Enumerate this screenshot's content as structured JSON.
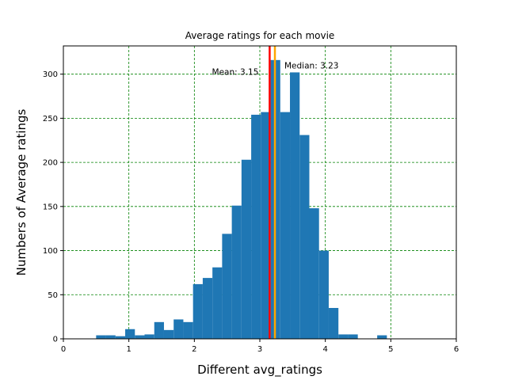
{
  "chart_data": {
    "type": "bar",
    "title": "Average ratings for each movie",
    "xlabel": "Different avg_ratings",
    "ylabel": "Numbers of Average ratings",
    "xlim": [
      0,
      6
    ],
    "ylim": [
      0,
      332
    ],
    "xticks": [
      0,
      1,
      2,
      3,
      4,
      5,
      6
    ],
    "yticks": [
      0,
      50,
      100,
      150,
      200,
      250,
      300
    ],
    "grid": true,
    "bin_width": 0.148,
    "bins": [
      {
        "x0": 0.5,
        "count": 4
      },
      {
        "x0": 0.648,
        "count": 4
      },
      {
        "x0": 0.796,
        "count": 3
      },
      {
        "x0": 0.944,
        "count": 11
      },
      {
        "x0": 1.092,
        "count": 4
      },
      {
        "x0": 1.24,
        "count": 5
      },
      {
        "x0": 1.388,
        "count": 19
      },
      {
        "x0": 1.536,
        "count": 10
      },
      {
        "x0": 1.684,
        "count": 22
      },
      {
        "x0": 1.832,
        "count": 19
      },
      {
        "x0": 1.98,
        "count": 62
      },
      {
        "x0": 2.128,
        "count": 69
      },
      {
        "x0": 2.276,
        "count": 81
      },
      {
        "x0": 2.424,
        "count": 119
      },
      {
        "x0": 2.572,
        "count": 151
      },
      {
        "x0": 2.72,
        "count": 203
      },
      {
        "x0": 2.868,
        "count": 254
      },
      {
        "x0": 3.016,
        "count": 257
      },
      {
        "x0": 3.164,
        "count": 316
      },
      {
        "x0": 3.312,
        "count": 257
      },
      {
        "x0": 3.46,
        "count": 302
      },
      {
        "x0": 3.608,
        "count": 231
      },
      {
        "x0": 3.756,
        "count": 148
      },
      {
        "x0": 3.904,
        "count": 100
      },
      {
        "x0": 4.052,
        "count": 35
      },
      {
        "x0": 4.2,
        "count": 5
      },
      {
        "x0": 4.348,
        "count": 5
      },
      {
        "x0": 4.496,
        "count": 0
      },
      {
        "x0": 4.644,
        "count": 0
      },
      {
        "x0": 4.792,
        "count": 4
      }
    ],
    "bar_color": "#1f77b4",
    "grid_color": "#008000",
    "mean": {
      "value": 3.15,
      "label": "Mean: 3.15",
      "color": "#ff0000"
    },
    "median": {
      "value": 3.23,
      "label": "Median: 3.23",
      "color": "#ffa500"
    }
  }
}
